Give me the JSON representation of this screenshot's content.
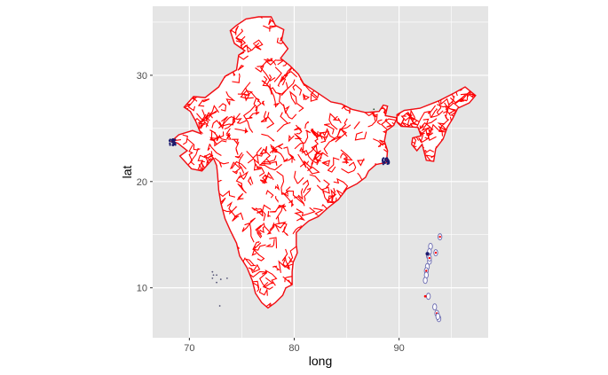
{
  "chart_data": {
    "type": "map",
    "xlabel": "long",
    "ylabel": "lat",
    "xlim": [
      66.5,
      98.5
    ],
    "ylim": [
      5.3,
      36.5
    ],
    "x_ticks": [
      70,
      80,
      90
    ],
    "y_ticks": [
      10,
      20,
      30
    ],
    "x_minor": [
      65,
      75,
      85,
      95
    ],
    "y_minor": [
      5,
      15,
      25,
      35
    ],
    "grid": true,
    "legend": "none",
    "colors": {
      "panel_background": "#e5e5e5",
      "grid": "#ffffff",
      "boundary_lines": "#ff0000",
      "region_fill": "#ffffff",
      "coast_points": "#1a1a6e"
    }
  }
}
